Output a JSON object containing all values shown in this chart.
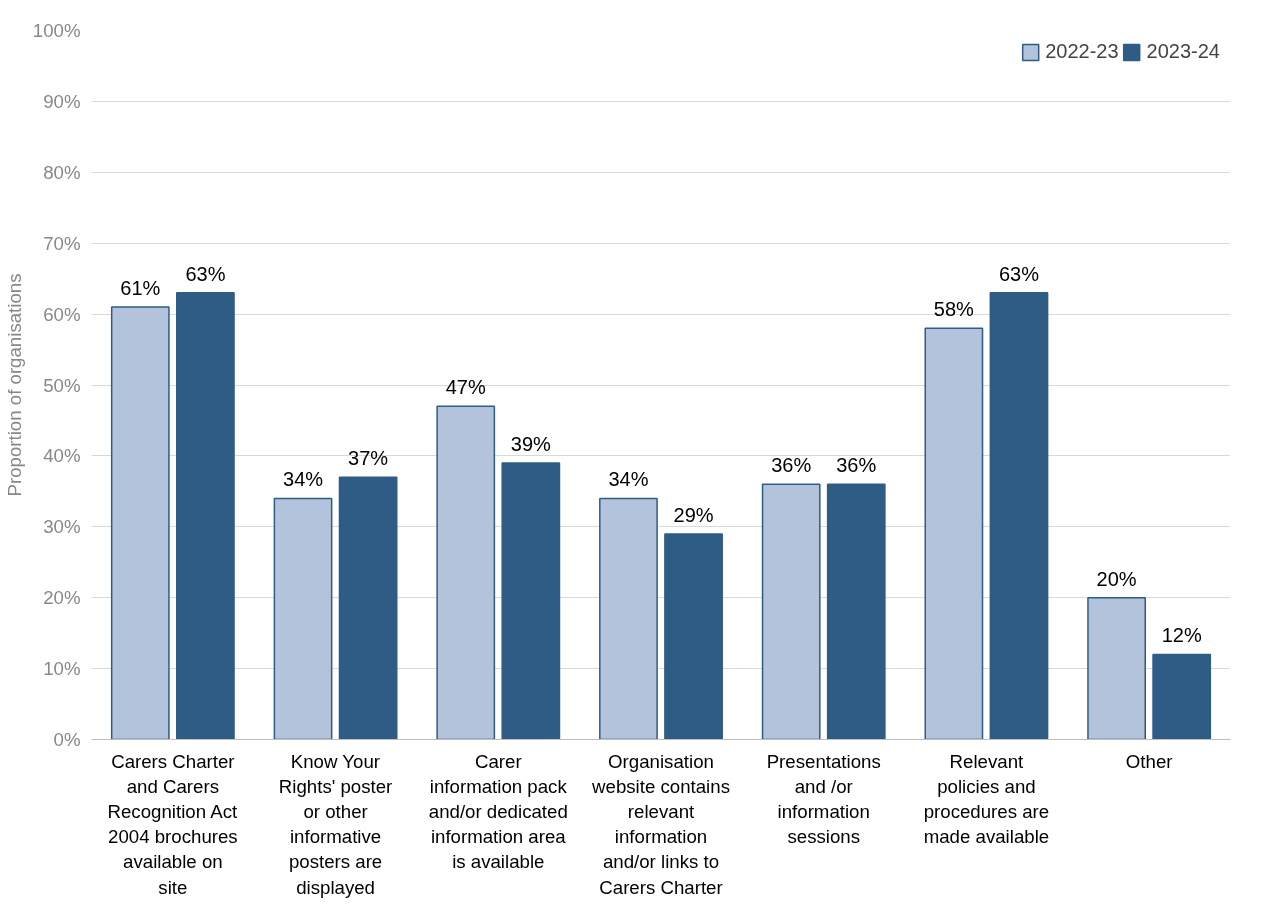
{
  "chart_data": {
    "type": "bar",
    "ylabel": "Proportion of organisations",
    "categories": [
      "Carers Charter and Carers Recognition Act 2004 brochures available on site",
      "Know Your Rights' poster or other informative posters are displayed",
      "Carer information pack and/or dedicated information area is available",
      "Organisation website contains relevant information and/or links to Carers Charter",
      "Presentations and /or information sessions",
      "Relevant policies and procedures are made available",
      "Other"
    ],
    "series": [
      {
        "name": "2022-23",
        "color": "#b3c3dc",
        "values": [
          61,
          34,
          47,
          34,
          36,
          58,
          20
        ],
        "value_labels": [
          "61%",
          "34%",
          "47%",
          "34%",
          "36%",
          "58%",
          "20%"
        ]
      },
      {
        "name": "2023-24",
        "color": "#2e5c85",
        "values": [
          63,
          37,
          39,
          29,
          36,
          63,
          12
        ],
        "value_labels": [
          "63%",
          "37%",
          "39%",
          "29%",
          "36%",
          "63%",
          "12%"
        ]
      }
    ],
    "ylim": [
      0,
      100
    ],
    "yticks": [
      {
        "value": 0,
        "label": "0%"
      },
      {
        "value": 10,
        "label": "10%"
      },
      {
        "value": 20,
        "label": "20%"
      },
      {
        "value": 30,
        "label": "30%"
      },
      {
        "value": 40,
        "label": "40%"
      },
      {
        "value": 50,
        "label": "50%"
      },
      {
        "value": 60,
        "label": "60%"
      },
      {
        "value": 70,
        "label": "70%"
      },
      {
        "value": 80,
        "label": "80%"
      },
      {
        "value": 90,
        "label": "90%"
      },
      {
        "value": 100,
        "label": "100%"
      }
    ],
    "grid": "y",
    "legend": "top right"
  }
}
